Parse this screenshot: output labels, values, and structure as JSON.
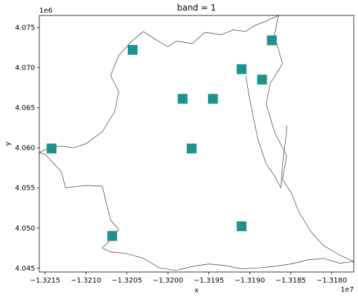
{
  "chart_data": {
    "type": "scatter",
    "title": "band = 1",
    "xlabel": "x",
    "ylabel": "y",
    "x_offset_label": "1e7",
    "y_offset_label": "1e6",
    "xlim": [
      -1.32157,
      -1.31773
    ],
    "ylim": [
      4.0445,
      4.0765
    ],
    "x_ticks": [
      -1.3215,
      -1.321,
      -1.3205,
      -1.32,
      -1.3195,
      -1.319,
      -1.3185,
      -1.318
    ],
    "x_tick_labels": [
      "−1.3215",
      "−1.3210",
      "−1.3205",
      "−1.3200",
      "−1.3195",
      "−1.3190",
      "−1.3185",
      "−1.3180"
    ],
    "y_ticks": [
      4.045,
      4.05,
      4.055,
      4.06,
      4.065,
      4.07,
      4.075
    ],
    "y_tick_labels": [
      "4.045",
      "4.050",
      "4.055",
      "4.060",
      "4.065",
      "4.070",
      "4.075"
    ],
    "grid": false,
    "marker_color": "#21918c",
    "outline_color": "#333333",
    "points": [
      {
        "x": -1.32142,
        "y": 4.0599
      },
      {
        "x": -1.32043,
        "y": 4.0722
      },
      {
        "x": -1.31982,
        "y": 4.0661
      },
      {
        "x": -1.31945,
        "y": 4.0661
      },
      {
        "x": -1.31971,
        "y": 4.0599
      },
      {
        "x": -1.3191,
        "y": 4.0698
      },
      {
        "x": -1.31885,
        "y": 4.0685
      },
      {
        "x": -1.31873,
        "y": 4.0734
      },
      {
        "x": -1.32068,
        "y": 4.049
      },
      {
        "x": -1.3191,
        "y": 4.0502
      }
    ],
    "boundary": [
      [
        -1.32157,
        4.0594
      ],
      [
        -1.3215,
        4.0592
      ],
      [
        -1.3214,
        4.0581
      ],
      [
        -1.3213,
        4.057
      ],
      [
        -1.32125,
        4.055
      ],
      [
        -1.321,
        4.0553
      ],
      [
        -1.3208,
        4.0552
      ],
      [
        -1.32075,
        4.053
      ],
      [
        -1.3207,
        4.051
      ],
      [
        -1.3206,
        4.0498
      ],
      [
        -1.3207,
        4.0485
      ],
      [
        -1.3208,
        4.0475
      ],
      [
        -1.3207,
        4.047
      ],
      [
        -1.3205,
        4.0468
      ],
      [
        -1.3203,
        4.0462
      ],
      [
        -1.3201,
        4.045
      ],
      [
        -1.3199,
        4.0447
      ],
      [
        -1.3197,
        4.0452
      ],
      [
        -1.3195,
        4.0455
      ],
      [
        -1.3193,
        4.0453
      ],
      [
        -1.3191,
        4.0449
      ],
      [
        -1.3189,
        4.045
      ],
      [
        -1.3187,
        4.0452
      ],
      [
        -1.3185,
        4.0455
      ],
      [
        -1.3183,
        4.046
      ],
      [
        -1.3181,
        4.0462
      ],
      [
        -1.3179,
        4.0456
      ],
      [
        -1.31773,
        4.0458
      ]
    ],
    "boundary_top": [
      [
        -1.32157,
        4.0594
      ],
      [
        -1.32145,
        4.06
      ],
      [
        -1.3213,
        4.0602
      ],
      [
        -1.32115,
        4.06
      ],
      [
        -1.321,
        4.0605
      ],
      [
        -1.3208,
        4.062
      ],
      [
        -1.32065,
        4.0645
      ],
      [
        -1.3206,
        4.067
      ],
      [
        -1.3207,
        4.069
      ],
      [
        -1.3206,
        4.0715
      ],
      [
        -1.32045,
        4.0732
      ],
      [
        -1.3203,
        4.0745
      ],
      [
        -1.32015,
        4.0735
      ],
      [
        -1.32,
        4.0726
      ],
      [
        -1.3199,
        4.0733
      ],
      [
        -1.3197,
        4.073
      ],
      [
        -1.31955,
        4.0744
      ],
      [
        -1.31935,
        4.0741
      ],
      [
        -1.3192,
        4.0747
      ],
      [
        -1.31905,
        4.0745
      ],
      [
        -1.31895,
        4.0752
      ],
      [
        -1.3188,
        4.0758
      ],
      [
        -1.31865,
        4.0765
      ]
    ],
    "boundary_right": [
      [
        -1.31865,
        4.0765
      ],
      [
        -1.3187,
        4.074
      ],
      [
        -1.3186,
        4.0705
      ],
      [
        -1.31875,
        4.068
      ],
      [
        -1.3188,
        4.0655
      ],
      [
        -1.3187,
        4.062
      ],
      [
        -1.31855,
        4.059
      ],
      [
        -1.3186,
        4.056
      ],
      [
        -1.3185,
        4.0545
      ],
      [
        -1.3184,
        4.052
      ],
      [
        -1.31825,
        4.0495
      ],
      [
        -1.3181,
        4.0478
      ],
      [
        -1.3179,
        4.0466
      ],
      [
        -1.31773,
        4.0458
      ]
    ],
    "boundary_inner": [
      [
        -1.31905,
        4.069
      ],
      [
        -1.319,
        4.066
      ],
      [
        -1.3189,
        4.061
      ],
      [
        -1.3188,
        4.058
      ],
      [
        -1.3187,
        4.0565
      ],
      [
        -1.31862,
        4.055
      ],
      [
        -1.3186,
        4.058
      ],
      [
        -1.31855,
        4.062
      ],
      [
        -1.31855,
        4.0628
      ]
    ]
  }
}
